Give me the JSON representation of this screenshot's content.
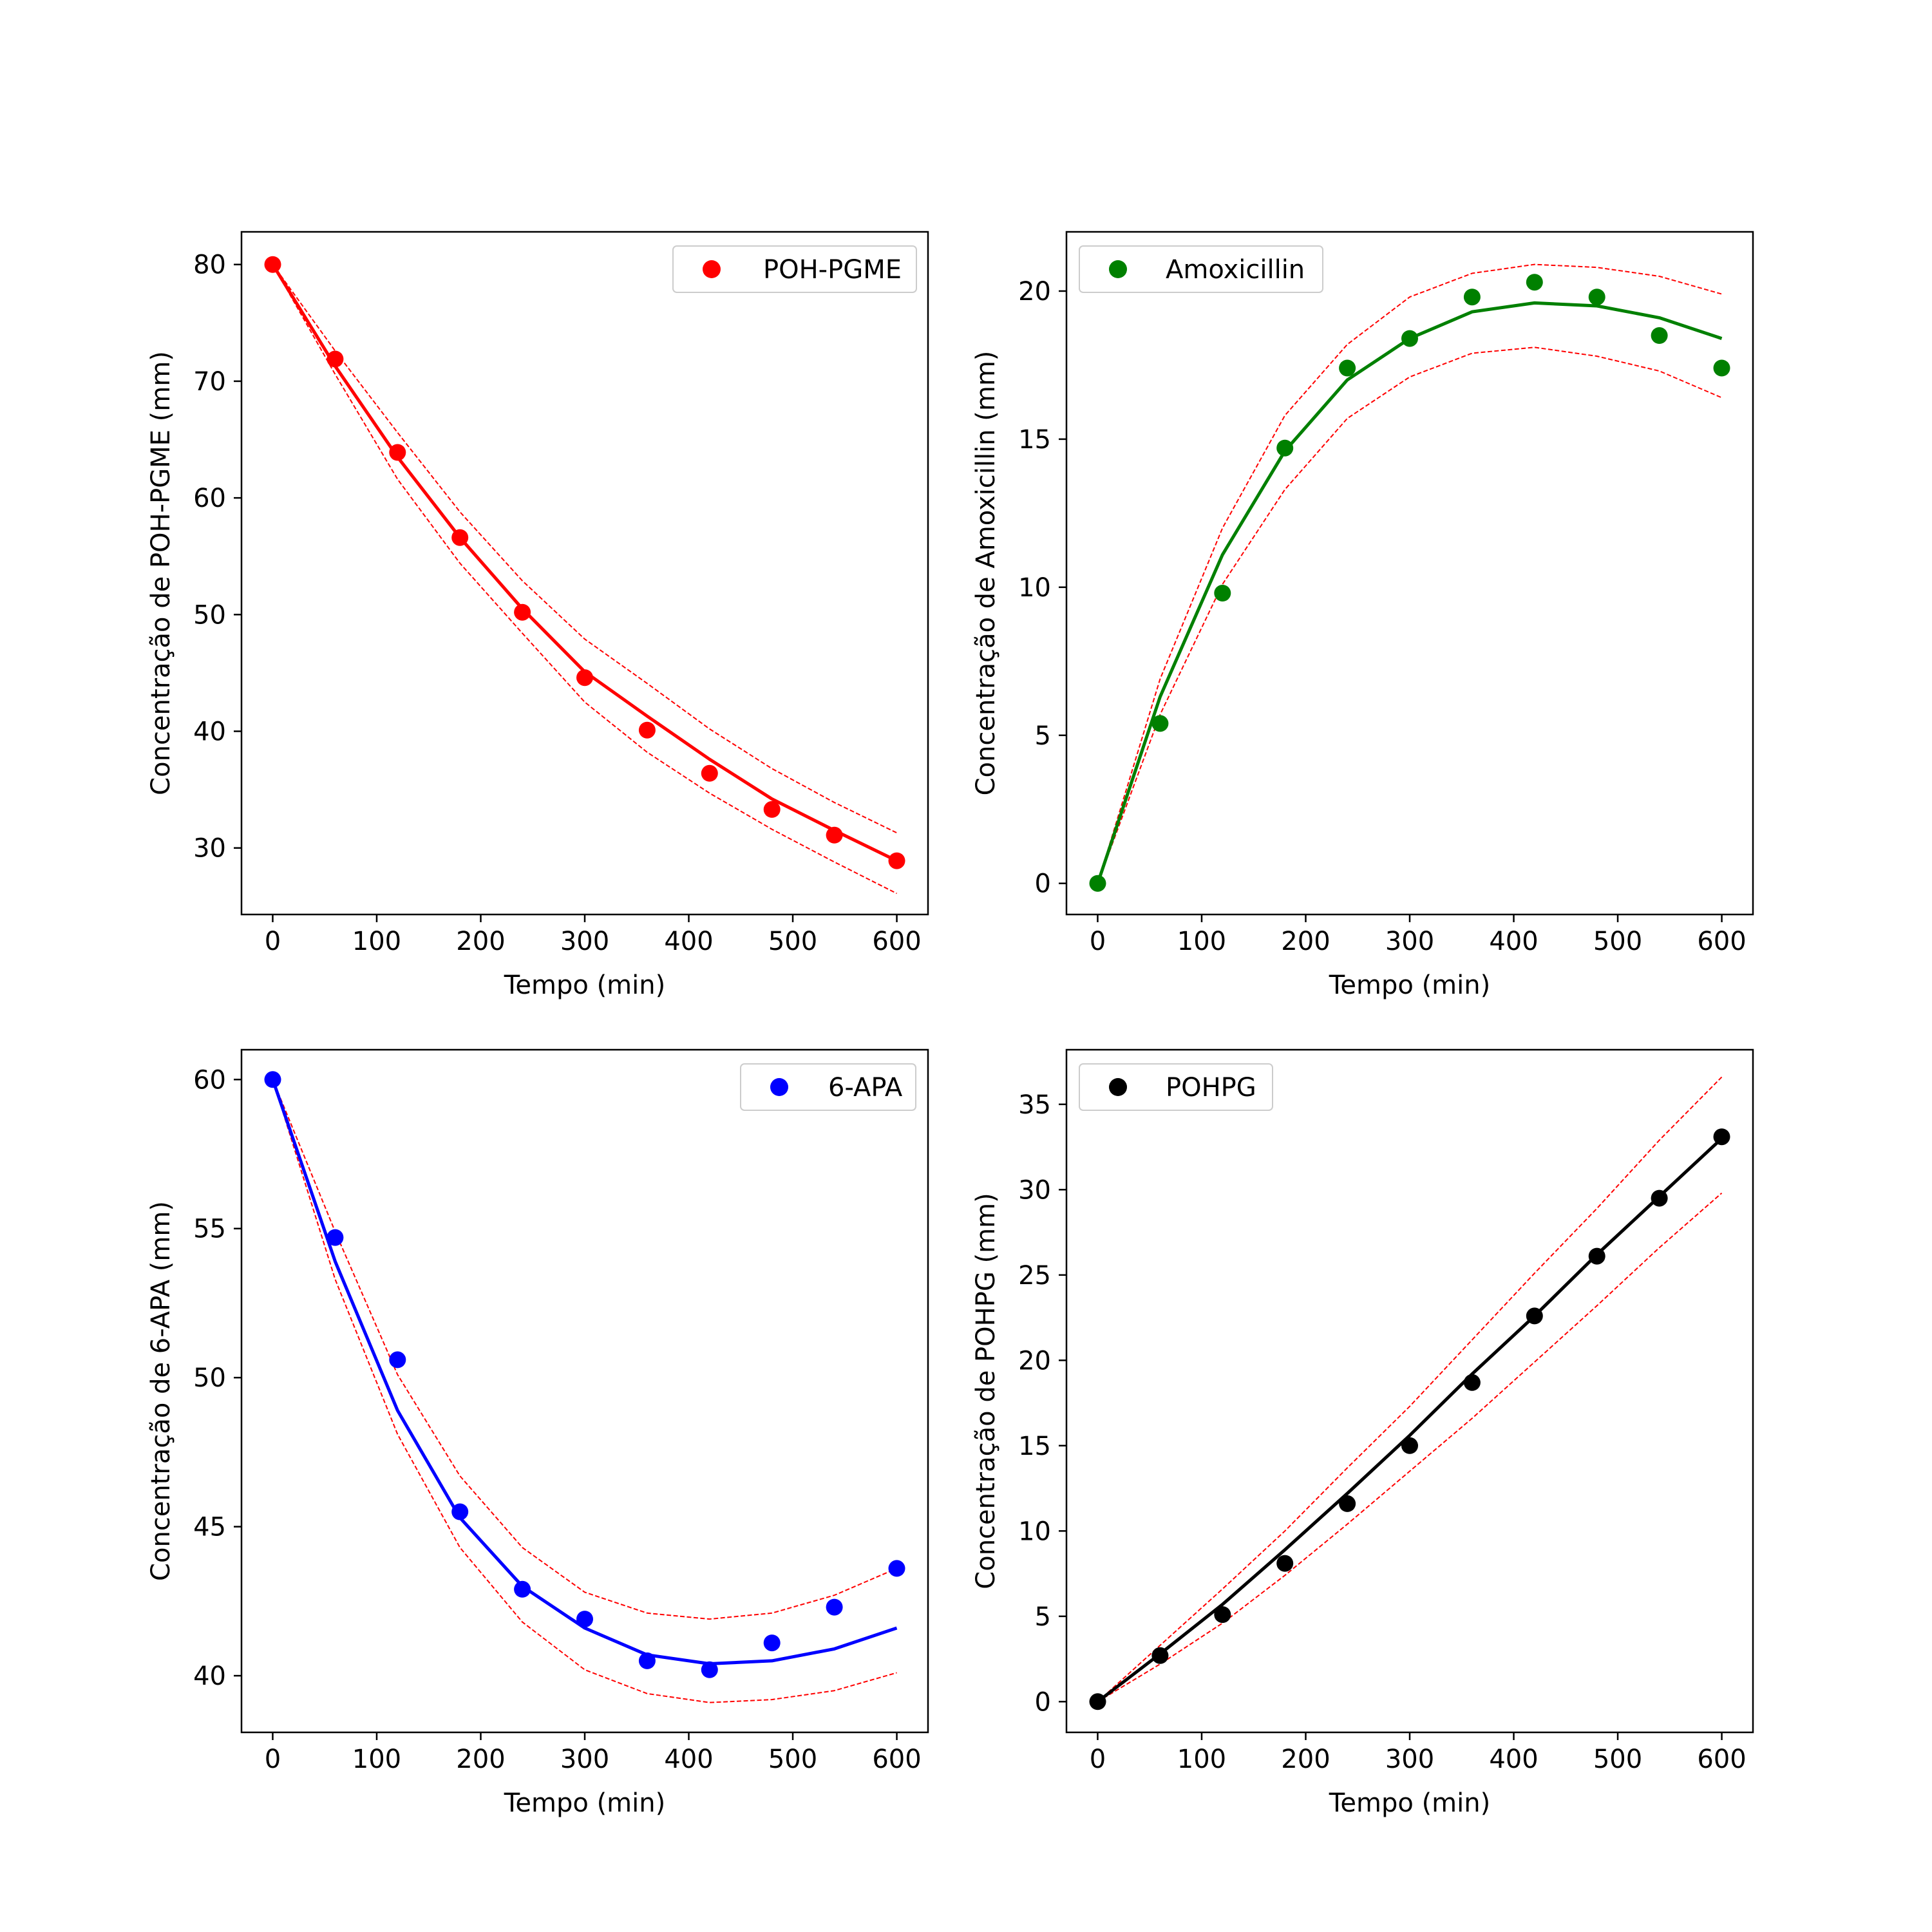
{
  "chart_data": [
    {
      "type": "scatter",
      "xlabel": "Tempo (min)",
      "ylabel": "Concentração de POH-PGME (mm)",
      "xlim": [
        -30,
        630
      ],
      "ylim": [
        24.3,
        82.8
      ],
      "xticks": [
        0,
        100,
        200,
        300,
        400,
        500,
        600
      ],
      "yticks": [
        30,
        40,
        50,
        60,
        70,
        80
      ],
      "legend": {
        "label": "POH-PGME",
        "placement": "top-right"
      },
      "color": "#ff0000",
      "band_color": "#ff0000",
      "x": [
        0,
        60,
        120,
        180,
        240,
        300,
        360,
        420,
        480,
        540,
        600
      ],
      "observed": [
        80.0,
        71.9,
        63.9,
        56.6,
        50.2,
        44.6,
        40.1,
        36.4,
        33.3,
        31.1,
        28.9
      ],
      "model": [
        80.0,
        71.3,
        63.5,
        56.6,
        50.5,
        45.1,
        41.3,
        37.6,
        34.2,
        31.5,
        28.9
      ],
      "upper": [
        80.0,
        72.6,
        65.6,
        58.8,
        52.9,
        47.9,
        44.1,
        40.2,
        36.8,
        33.9,
        31.3
      ],
      "lower": [
        80.0,
        70.6,
        61.6,
        54.4,
        48.4,
        42.5,
        38.2,
        34.7,
        31.6,
        28.8,
        26.1
      ]
    },
    {
      "type": "scatter",
      "xlabel": "Tempo (min)",
      "ylabel": "Concentração de Amoxicillin (mm)",
      "xlim": [
        -30,
        630
      ],
      "ylim": [
        -1.05,
        22.0
      ],
      "xticks": [
        0,
        100,
        200,
        300,
        400,
        500,
        600
      ],
      "yticks": [
        0,
        5,
        10,
        15,
        20
      ],
      "legend": {
        "label": "Amoxicillin",
        "placement": "top-left"
      },
      "color": "#008000",
      "band_color": "#ff0000",
      "x": [
        0,
        60,
        120,
        180,
        240,
        300,
        360,
        420,
        480,
        540,
        600
      ],
      "observed": [
        0.0,
        5.4,
        9.8,
        14.7,
        17.4,
        18.4,
        19.8,
        20.3,
        19.8,
        18.5,
        17.4
      ],
      "model": [
        0.0,
        6.3,
        11.1,
        14.6,
        17.0,
        18.4,
        19.3,
        19.6,
        19.5,
        19.1,
        18.4
      ],
      "upper": [
        0.0,
        6.9,
        12.0,
        15.8,
        18.2,
        19.8,
        20.6,
        20.9,
        20.8,
        20.5,
        19.9
      ],
      "lower": [
        0.0,
        5.7,
        10.1,
        13.3,
        15.7,
        17.1,
        17.9,
        18.1,
        17.8,
        17.3,
        16.4
      ]
    },
    {
      "type": "scatter",
      "xlabel": "Tempo (min)",
      "ylabel": "Concentração de 6-APA (mm)",
      "xlim": [
        -30,
        630
      ],
      "ylim": [
        38.1,
        61.0
      ],
      "xticks": [
        0,
        100,
        200,
        300,
        400,
        500,
        600
      ],
      "yticks": [
        40,
        45,
        50,
        55,
        60
      ],
      "legend": {
        "label": "6-APA",
        "placement": "top-right"
      },
      "color": "#0000ff",
      "band_color": "#ff0000",
      "x": [
        0,
        60,
        120,
        180,
        240,
        300,
        360,
        420,
        480,
        540,
        600
      ],
      "observed": [
        60.0,
        54.7,
        50.6,
        45.5,
        42.9,
        41.9,
        40.5,
        40.2,
        41.1,
        42.3,
        43.6
      ],
      "model": [
        60.0,
        53.9,
        48.9,
        45.3,
        43.0,
        41.6,
        40.7,
        40.4,
        40.5,
        40.9,
        41.6
      ],
      "upper": [
        60.0,
        54.9,
        50.1,
        46.7,
        44.3,
        42.8,
        42.1,
        41.9,
        42.1,
        42.7,
        43.6
      ],
      "lower": [
        60.0,
        53.3,
        48.1,
        44.3,
        41.8,
        40.2,
        39.4,
        39.1,
        39.2,
        39.5,
        40.1
      ]
    },
    {
      "type": "scatter",
      "xlabel": "Tempo (min)",
      "ylabel": "Concentração de POHPG (mm)",
      "xlim": [
        -30,
        630
      ],
      "ylim": [
        -1.8,
        38.2
      ],
      "xticks": [
        0,
        100,
        200,
        300,
        400,
        500,
        600
      ],
      "yticks": [
        0,
        5,
        10,
        15,
        20,
        25,
        30,
        35
      ],
      "legend": {
        "label": "POHPG",
        "placement": "top-left"
      },
      "color": "#000000",
      "band_color": "#ff0000",
      "x": [
        0,
        60,
        120,
        180,
        240,
        300,
        360,
        420,
        480,
        540,
        600
      ],
      "observed": [
        0.0,
        2.7,
        5.1,
        8.1,
        11.6,
        15.0,
        18.7,
        22.6,
        26.1,
        29.5,
        33.1
      ],
      "model": [
        0.0,
        2.8,
        5.7,
        8.9,
        12.2,
        15.6,
        19.2,
        22.6,
        26.2,
        29.6,
        33.0
      ],
      "upper": [
        0.0,
        3.3,
        6.6,
        10.0,
        13.7,
        17.3,
        21.2,
        25.1,
        28.9,
        32.9,
        36.6
      ],
      "lower": [
        0.0,
        2.2,
        4.6,
        7.4,
        10.4,
        13.5,
        16.6,
        19.9,
        23.2,
        26.6,
        29.8
      ]
    }
  ]
}
